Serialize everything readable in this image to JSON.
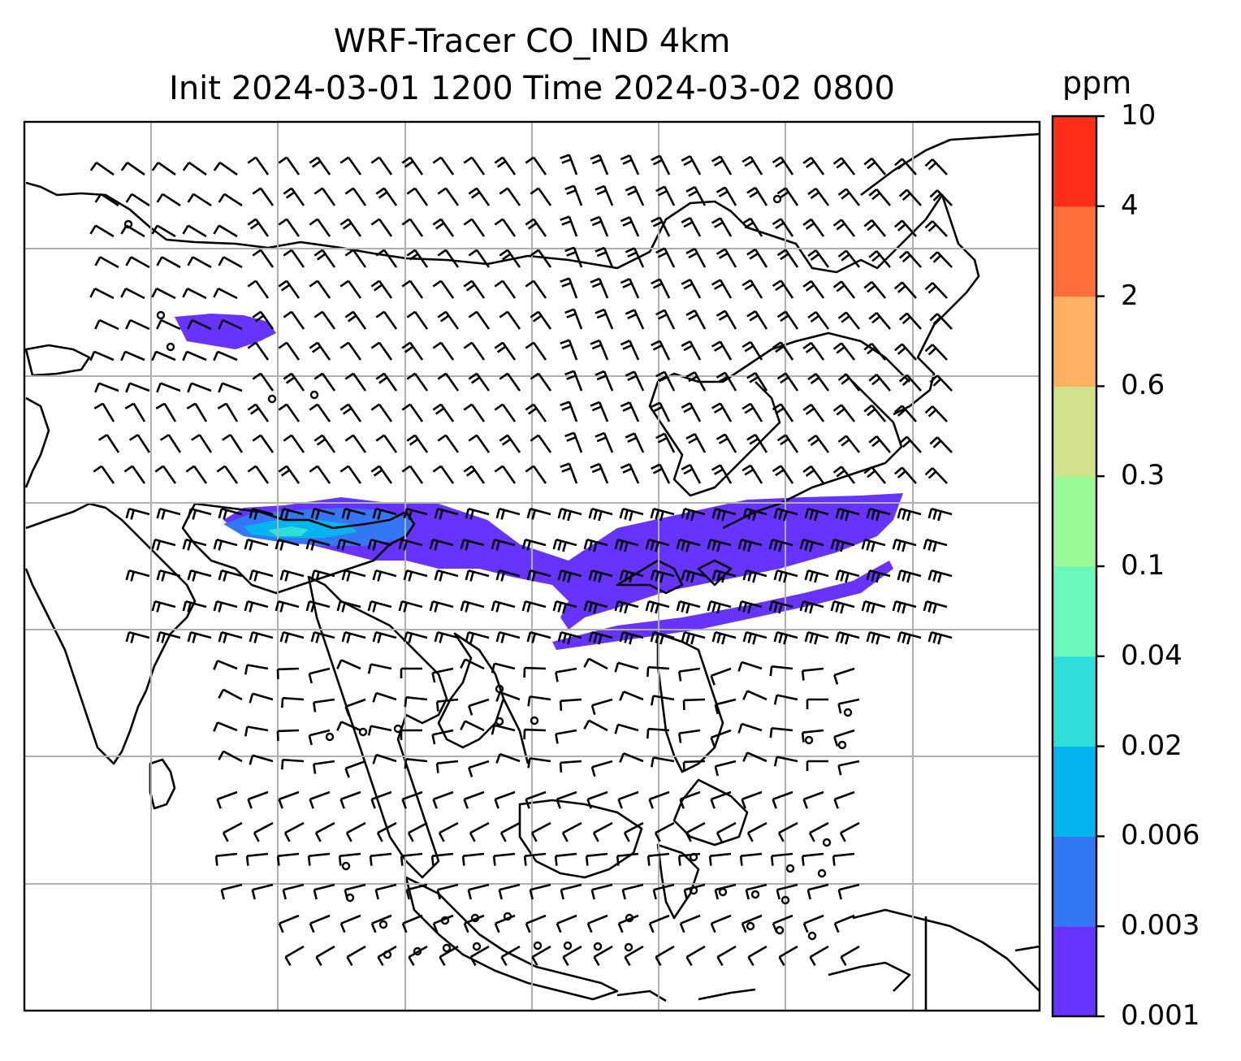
{
  "title_line1": "WRF-Tracer CO_IND 4km",
  "title_line2": "Init 2024-03-01 1200 Time 2024-03-02 0800",
  "colorbar": {
    "unit": "ppm",
    "levels": [
      "0.001",
      "0.003",
      "0.006",
      "0.02",
      "0.04",
      "0.1",
      "0.3",
      "0.6",
      "2",
      "4",
      "10"
    ],
    "colors": [
      "#6633ff",
      "#3377f5",
      "#03b4ee",
      "#2fded8",
      "#6bf8bc",
      "#98f996",
      "#d1e28a",
      "#feb063",
      "#fe6f3b",
      "#ff2d1a"
    ]
  },
  "map": {
    "land_outline_color": "#000000",
    "grid_color": "#b0b0b0",
    "wind_barb_color": "#000000"
  }
}
